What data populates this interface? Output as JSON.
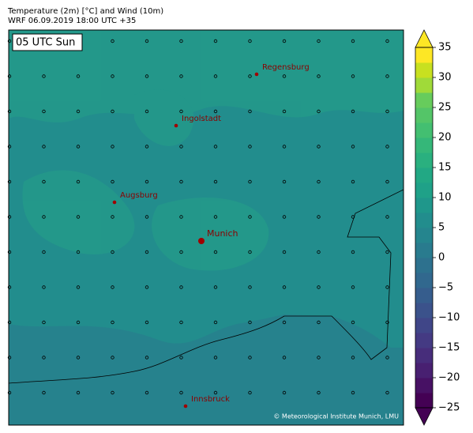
{
  "header": {
    "title_lines": [
      "Temperature (2m) [°C] and Wind (10m)",
      "WRF 06.09.2019 18:00 UTC +35"
    ]
  },
  "map": {
    "time_label": "05 UTC Sun",
    "cities": [
      "Regensburg",
      "Ingolstadt",
      "Augsburg",
      "Munich",
      "Innsbruck"
    ],
    "credit": "© Meteorological Institute Munich, LMU"
  },
  "colorbar": {
    "lim": [
      -25,
      35
    ],
    "ticks": [
      {
        "value": -25,
        "label": "−25"
      },
      {
        "value": -20,
        "label": "−20"
      },
      {
        "value": -15,
        "label": "−15"
      },
      {
        "value": -10,
        "label": "−10"
      },
      {
        "value": -5,
        "label": "−5"
      },
      0,
      5,
      10,
      15,
      20,
      25,
      30,
      35
    ],
    "colors": [
      "#440154",
      "#471164",
      "#482071",
      "#472d7b",
      "#443a83",
      "#404688",
      "#3b528b",
      "#365d8d",
      "#31688e",
      "#2d718e",
      "#297b8e",
      "#25858e",
      "#228d8d",
      "#1f978b",
      "#1fa188",
      "#22a884",
      "#2ab07f",
      "#35b779",
      "#43bf71",
      "#54c568",
      "#67cc5c",
      "#a0da39",
      "#c8e020",
      "#fde725"
    ]
  }
}
